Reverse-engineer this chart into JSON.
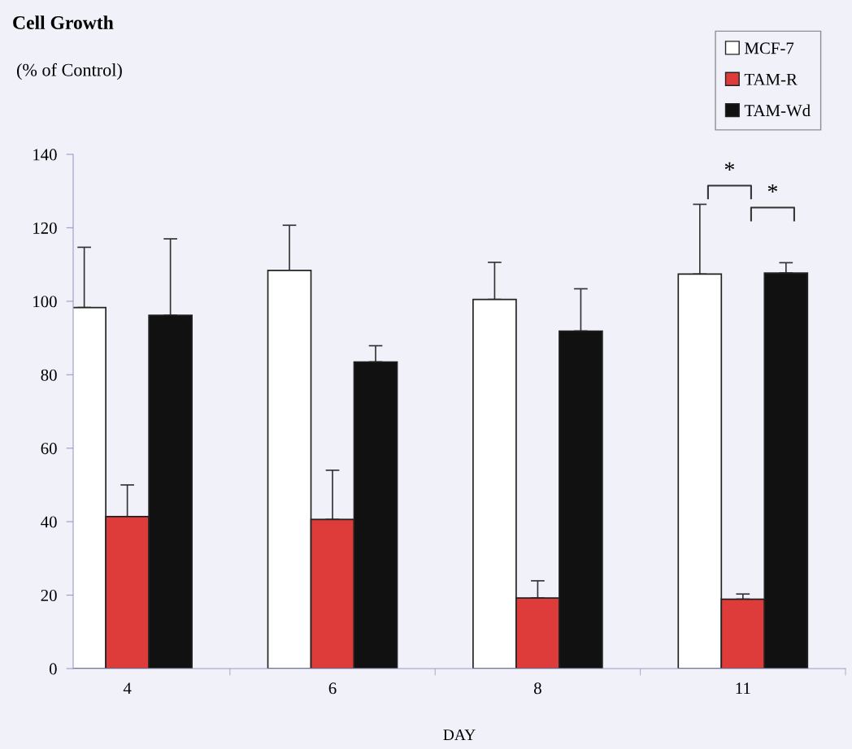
{
  "chart_data": {
    "type": "bar",
    "title": "Cell Growth",
    "xlabel": "DAY",
    "categories": [
      "4",
      "6",
      "8",
      "11"
    ],
    "series": [
      {
        "name": "MCF-7",
        "color": "#ffffff",
        "values": [
          98.3,
          108.4,
          100.5,
          107.4
        ],
        "errors": [
          [
            98.3,
            114.7
          ],
          [
            108.4,
            120.7
          ],
          [
            100.5,
            110.6
          ],
          [
            107.4,
            126.4
          ]
        ]
      },
      {
        "name": "TAM-R",
        "color": "#de3b3b",
        "values": [
          41.4,
          40.6,
          19.2,
          18.9
        ],
        "errors": [
          [
            41.4,
            50.0
          ],
          [
            40.6,
            54.0
          ],
          [
            19.2,
            23.9
          ],
          [
            18.9,
            20.3
          ]
        ]
      },
      {
        "name": "TAM-Wd",
        "color": "#111111",
        "values": [
          96.2,
          83.5,
          91.9,
          107.7
        ],
        "errors": [
          [
            96.2,
            117.0
          ],
          [
            83.5,
            87.9
          ],
          [
            91.9,
            103.4
          ],
          [
            107.7,
            110.5
          ]
        ]
      }
    ],
    "annotations": [
      "(% of Control)",
      "*",
      "*"
    ],
    "ylim": [
      0,
      140
    ],
    "yticks": [
      0,
      20,
      40,
      60,
      80,
      100,
      120,
      140
    ],
    "grid": false,
    "legend": "top right"
  }
}
